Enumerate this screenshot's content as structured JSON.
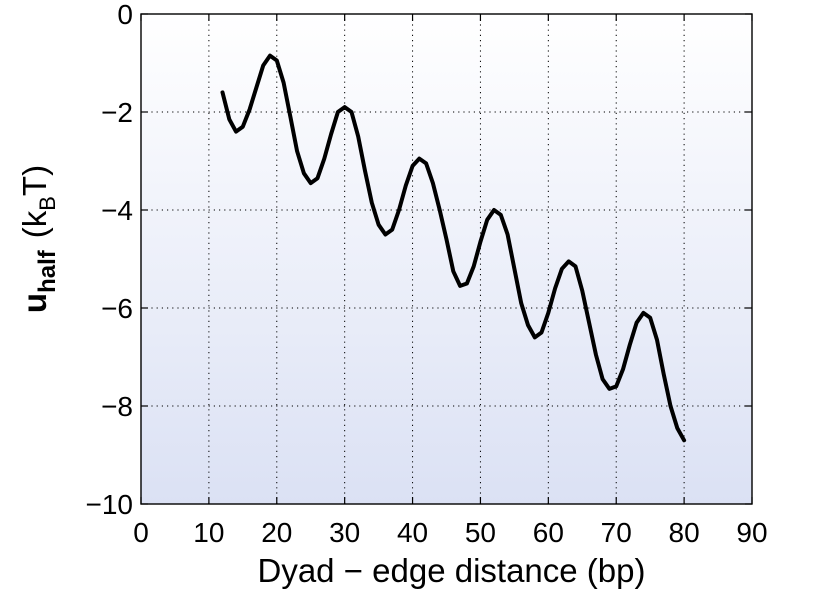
{
  "chart_data": {
    "type": "line",
    "title": "",
    "xlabel": "Dyad − edge distance (bp)",
    "ylabel": {
      "main": "u",
      "main_sub": "half",
      "unit_open": "(k",
      "unit_sub": "B",
      "unit_close": "T)"
    },
    "xlim": [
      0,
      90
    ],
    "ylim": [
      -10,
      0
    ],
    "xticks": [
      0,
      10,
      20,
      30,
      40,
      50,
      60,
      70,
      80,
      90
    ],
    "yticks": [
      0,
      -2,
      -4,
      -6,
      -8,
      -10
    ],
    "xtick_labels": [
      "0",
      "10",
      "20",
      "30",
      "40",
      "50",
      "60",
      "70",
      "80",
      "90"
    ],
    "ytick_labels": [
      "0",
      "−2",
      "−4",
      "−6",
      "−8",
      "−10"
    ],
    "grid": true,
    "grid_style": "dotted",
    "series": [
      {
        "color": "#000000",
        "x": [
          12,
          13,
          14,
          15,
          16,
          17,
          18,
          19,
          20,
          21,
          22,
          23,
          24,
          25,
          26,
          27,
          28,
          29,
          30,
          31,
          32,
          33,
          34,
          35,
          36,
          37,
          38,
          39,
          40,
          41,
          42,
          43,
          44,
          45,
          46,
          47,
          48,
          49,
          50,
          51,
          52,
          53,
          54,
          55,
          56,
          57,
          58,
          59,
          60,
          61,
          62,
          63,
          64,
          65,
          66,
          67,
          68,
          69,
          70,
          71,
          72,
          73,
          74,
          75,
          76,
          77,
          78,
          79,
          80
        ],
        "y": [
          -1.6,
          -2.15,
          -2.4,
          -2.3,
          -1.95,
          -1.5,
          -1.05,
          -0.85,
          -0.95,
          -1.4,
          -2.1,
          -2.8,
          -3.25,
          -3.45,
          -3.35,
          -2.95,
          -2.45,
          -2.0,
          -1.9,
          -2.0,
          -2.5,
          -3.2,
          -3.85,
          -4.3,
          -4.5,
          -4.4,
          -4.0,
          -3.5,
          -3.1,
          -2.95,
          -3.05,
          -3.45,
          -4.0,
          -4.6,
          -5.25,
          -5.55,
          -5.5,
          -5.15,
          -4.65,
          -4.2,
          -4.0,
          -4.1,
          -4.5,
          -5.2,
          -5.9,
          -6.35,
          -6.6,
          -6.5,
          -6.1,
          -5.6,
          -5.2,
          -5.05,
          -5.15,
          -5.65,
          -6.3,
          -6.95,
          -7.45,
          -7.65,
          -7.6,
          -7.25,
          -6.75,
          -6.3,
          -6.1,
          -6.2,
          -6.65,
          -7.35,
          -8.0,
          -8.45,
          -8.7
        ]
      }
    ],
    "background_gradient": [
      "#ffffff",
      "#dbe1f4"
    ]
  }
}
